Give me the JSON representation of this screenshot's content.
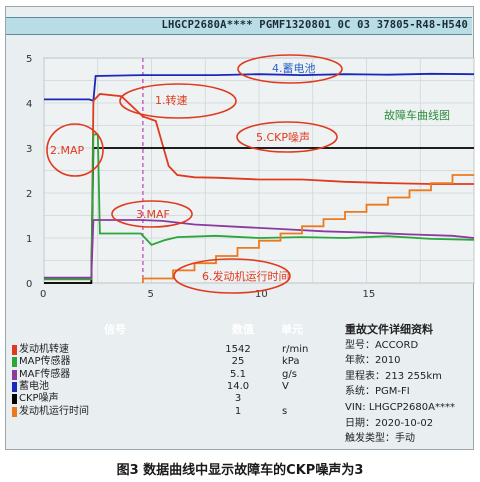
{
  "header": {
    "text": "LHGCP2680A****  PGMF1320801 0C 03 37805-R48-H540"
  },
  "chart_data": {
    "type": "line",
    "title": "故障车曲线图",
    "xlabel": "",
    "ylabel": "",
    "xlim": [
      0,
      20
    ],
    "ylim": [
      0,
      5
    ],
    "x_ticks": [
      "0",
      "5",
      "10",
      "15"
    ],
    "y_ticks": [
      "0",
      "1",
      "2",
      "3",
      "4",
      "5"
    ],
    "grid": true,
    "series": [
      {
        "color": "#1b27b8",
        "points": [
          [
            0,
            4.08
          ],
          [
            2.1,
            4.08
          ],
          [
            2.3,
            4.05
          ],
          [
            2.4,
            4.6
          ],
          [
            4.6,
            4.62
          ],
          [
            8,
            4.62
          ],
          [
            10,
            4.64
          ],
          [
            12,
            4.62
          ],
          [
            14,
            4.64
          ],
          [
            16,
            4.63
          ],
          [
            18,
            4.65
          ],
          [
            20,
            4.64
          ]
        ]
      },
      {
        "color": "#e03a1e",
        "points": [
          [
            0,
            0
          ],
          [
            2.2,
            0
          ],
          [
            2.3,
            4.05
          ],
          [
            2.6,
            4.2
          ],
          [
            3.6,
            4.15
          ],
          [
            4.6,
            3.7
          ],
          [
            5.2,
            3.6
          ],
          [
            5.8,
            2.6
          ],
          [
            6.2,
            2.4
          ],
          [
            7,
            2.35
          ],
          [
            8,
            2.34
          ],
          [
            10,
            2.3
          ],
          [
            12,
            2.3
          ],
          [
            14,
            2.25
          ],
          [
            16,
            2.22
          ],
          [
            18,
            2.2
          ],
          [
            20,
            2.2
          ]
        ]
      },
      {
        "color": "#000000",
        "points": [
          [
            0,
            0
          ],
          [
            2.2,
            0
          ],
          [
            2.3,
            3.0
          ],
          [
            20,
            3.0
          ]
        ]
      },
      {
        "color": "#2ca53a",
        "points": [
          [
            0,
            0.08
          ],
          [
            2.2,
            0.08
          ],
          [
            2.3,
            3.3
          ],
          [
            2.5,
            3.3
          ],
          [
            2.6,
            1.1
          ],
          [
            4.5,
            1.1
          ],
          [
            5,
            0.85
          ],
          [
            5.6,
            0.95
          ],
          [
            6.2,
            1.02
          ],
          [
            8,
            1.05
          ],
          [
            10,
            1.0
          ],
          [
            12,
            1.02
          ],
          [
            14,
            1.0
          ],
          [
            16,
            1.04
          ],
          [
            18,
            0.98
          ],
          [
            20,
            0.96
          ]
        ]
      },
      {
        "color": "#8b3aa0",
        "points": [
          [
            0,
            0.12
          ],
          [
            2.2,
            0.12
          ],
          [
            2.3,
            1.4
          ],
          [
            4.5,
            1.4
          ],
          [
            5.5,
            1.38
          ],
          [
            7,
            1.3
          ],
          [
            9,
            1.25
          ],
          [
            11,
            1.2
          ],
          [
            13,
            1.15
          ],
          [
            15,
            1.12
          ],
          [
            17,
            1.08
          ],
          [
            19,
            1.05
          ],
          [
            20,
            1.0
          ]
        ]
      },
      {
        "color": "#ec7a1c",
        "points": [
          [
            4.6,
            0
          ],
          [
            4.6,
            0.1
          ],
          [
            6,
            0.1
          ],
          [
            6,
            0.28
          ],
          [
            7,
            0.28
          ],
          [
            7,
            0.44
          ],
          [
            8,
            0.44
          ],
          [
            8,
            0.6
          ],
          [
            9,
            0.6
          ],
          [
            9,
            0.78
          ],
          [
            10,
            0.78
          ],
          [
            10,
            0.94
          ],
          [
            11,
            0.94
          ],
          [
            11,
            1.1
          ],
          [
            12,
            1.1
          ],
          [
            12,
            1.26
          ],
          [
            13,
            1.26
          ],
          [
            13,
            1.42
          ],
          [
            14,
            1.42
          ],
          [
            14,
            1.58
          ],
          [
            15,
            1.58
          ],
          [
            15,
            1.74
          ],
          [
            16,
            1.74
          ],
          [
            16,
            1.9
          ],
          [
            17,
            1.9
          ],
          [
            17,
            2.06
          ],
          [
            18,
            2.06
          ],
          [
            18,
            2.22
          ],
          [
            19,
            2.22
          ],
          [
            19,
            2.4
          ],
          [
            20,
            2.4
          ]
        ]
      }
    ],
    "marker_x": 4.6,
    "annotations": [
      {
        "label": "4.蓄电池"
      },
      {
        "label": "1.转速"
      },
      {
        "label": "2.MAP"
      },
      {
        "label": "5.CKP噪声"
      },
      {
        "label": "3.MAF"
      },
      {
        "label": "6.发动机运行时间"
      }
    ]
  },
  "table": {
    "headers": {
      "signal": "信号",
      "value": "数值",
      "unit": "单元"
    },
    "rows": [
      {
        "name": "发动机转速",
        "value": "1542",
        "unit": "r/min",
        "color": "#e03a1e"
      },
      {
        "name": "MAP传感器",
        "value": "25",
        "unit": "kPa",
        "color": "#2ca53a"
      },
      {
        "name": "MAF传感器",
        "value": "5.1",
        "unit": "g/s",
        "color": "#8b3aa0"
      },
      {
        "name": "蓄电池",
        "value": "14.0",
        "unit": "V",
        "color": "#1b27b8"
      },
      {
        "name": "CKP噪声",
        "value": "3",
        "unit": "",
        "color": "#000000"
      },
      {
        "name": "发动机运行时间",
        "value": "1",
        "unit": "s",
        "color": "#ec7a1c"
      }
    ]
  },
  "info": {
    "title": "重故文件详细资料",
    "lines": [
      "型号：ACCORD",
      "年款：2010",
      "里程表：213 255km",
      "系统：PGM-FI",
      "VIN: LHGCP2680A****",
      "日期：2020-10-02",
      "触发类型：手动"
    ]
  },
  "caption": "图3  数据曲线中显示故障车的CKP噪声为3"
}
